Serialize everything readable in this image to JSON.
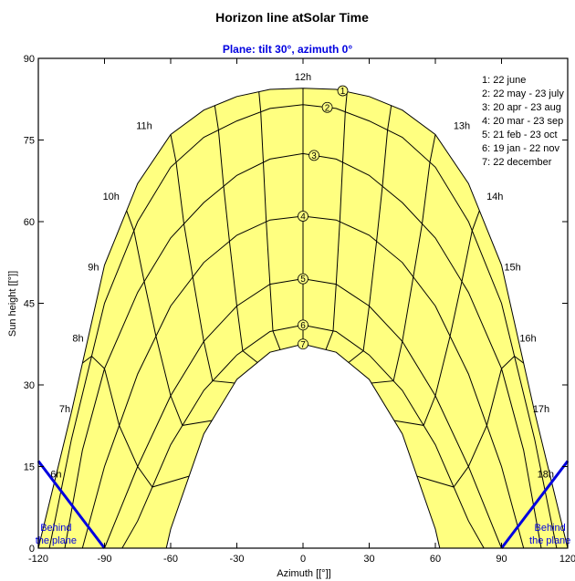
{
  "chart_data": {
    "type": "line",
    "title": "Horizon line atSolar Time",
    "subtitle": "Plane: tilt 30°, azimuth 0°",
    "xlabel": "Azimuth [[°]]",
    "ylabel": "Sun height [[°]]",
    "xlim": [
      -120,
      120
    ],
    "ylim": [
      0,
      90
    ],
    "xticks": [
      "-120",
      "-90",
      "-60",
      "-30",
      "0",
      "30",
      "60",
      "90",
      "120"
    ],
    "yticks": [
      "0",
      "15",
      "30",
      "45",
      "60",
      "75",
      "90"
    ],
    "grid": false,
    "legend_position": "top-right",
    "legend": [
      "1: 22 june",
      "2: 22 may - 23 july",
      "3: 20 apr - 23 aug",
      "4: 20 mar - 23 sep",
      "5: 21 feb - 23 oct",
      "6: 19 jan - 22 nov",
      "7: 22 december"
    ],
    "day_curves": [
      {
        "id": "1",
        "label": "22 june",
        "noon_height": 84.5,
        "x": [
          -120,
          -105,
          -90,
          -75,
          -60,
          -45,
          -30,
          -15,
          0,
          15,
          30,
          45,
          60,
          75,
          90,
          105,
          120
        ],
        "y": [
          0,
          25,
          52,
          67,
          76,
          80.5,
          83,
          84.3,
          84.5,
          84.3,
          83,
          80.5,
          76,
          67,
          52,
          25,
          0
        ]
      },
      {
        "id": "2",
        "label": "22 may - 23 july",
        "noon_height": 81.5,
        "x": [
          -115,
          -105,
          -90,
          -75,
          -60,
          -45,
          -30,
          -15,
          0,
          15,
          30,
          45,
          60,
          75,
          90,
          105,
          115
        ],
        "y": [
          0,
          20,
          45,
          60,
          70,
          75.5,
          78.5,
          80.8,
          81.5,
          80.8,
          78.5,
          75.5,
          70,
          60,
          45,
          20,
          0
        ]
      },
      {
        "id": "3",
        "label": "20 apr - 23 aug",
        "noon_height": 72.5,
        "x": [
          -108,
          -100,
          -90,
          -75,
          -60,
          -45,
          -30,
          -15,
          0,
          15,
          30,
          45,
          60,
          75,
          90,
          100,
          108
        ],
        "y": [
          0,
          18,
          33,
          47,
          57,
          63.5,
          68.5,
          71.5,
          72.5,
          71.5,
          68.5,
          63.5,
          57,
          47,
          33,
          18,
          0
        ]
      },
      {
        "id": "4",
        "label": "20 mar - 23 sep",
        "noon_height": 61,
        "x": [
          -100,
          -90,
          -75,
          -60,
          -45,
          -30,
          -15,
          0,
          15,
          30,
          45,
          60,
          75,
          90,
          100
        ],
        "y": [
          0,
          15,
          32,
          44.5,
          52.5,
          57.5,
          60.3,
          61,
          60.3,
          57.5,
          52.5,
          44.5,
          32,
          15,
          0
        ]
      },
      {
        "id": "5",
        "label": "21 feb - 23 oct",
        "noon_height": 49.5,
        "x": [
          -90,
          -75,
          -60,
          -45,
          -30,
          -15,
          0,
          15,
          30,
          45,
          60,
          75,
          90
        ],
        "y": [
          0,
          15,
          28,
          38,
          44.5,
          48.5,
          49.5,
          48.5,
          44.5,
          38,
          28,
          15,
          0
        ]
      },
      {
        "id": "6",
        "label": "19 jan - 22 nov",
        "noon_height": 41,
        "x": [
          -82,
          -75,
          -60,
          -45,
          -30,
          -15,
          0,
          15,
          30,
          45,
          60,
          75,
          82
        ],
        "y": [
          0,
          5,
          19,
          29,
          35.5,
          39.8,
          41,
          39.8,
          35.5,
          29,
          19,
          5,
          0
        ]
      },
      {
        "id": "7",
        "label": "22 december",
        "noon_height": 37.5,
        "x": [
          -62,
          -60,
          -45,
          -30,
          -15,
          0,
          15,
          30,
          45,
          60,
          62
        ],
        "y": [
          0,
          3.5,
          21,
          31,
          36,
          37.5,
          36,
          31,
          21,
          3.5,
          0
        ]
      }
    ],
    "hour_labels": [
      {
        "label": "6h",
        "x": -112,
        "y": 13
      },
      {
        "label": "7h",
        "x": -108,
        "y": 25
      },
      {
        "label": "8h",
        "x": -102,
        "y": 38
      },
      {
        "label": "9h",
        "x": -95,
        "y": 51
      },
      {
        "label": "10h",
        "x": -87,
        "y": 64
      },
      {
        "label": "11h",
        "x": -72,
        "y": 77
      },
      {
        "label": "12h",
        "x": 0,
        "y": 86
      },
      {
        "label": "13h",
        "x": 72,
        "y": 77
      },
      {
        "label": "14h",
        "x": 87,
        "y": 64
      },
      {
        "label": "15h",
        "x": 95,
        "y": 51
      },
      {
        "label": "16h",
        "x": 102,
        "y": 38
      },
      {
        "label": "17h",
        "x": 108,
        "y": 25
      },
      {
        "label": "18h",
        "x": 110,
        "y": 13
      }
    ],
    "behind_plane": {
      "label": "Behind the plane",
      "left": {
        "x": [
          -120,
          -90
        ],
        "y": [
          16,
          0
        ]
      },
      "right": {
        "x": [
          90,
          120
        ],
        "y": [
          0,
          16
        ]
      },
      "color": "#0000e0"
    },
    "colors": {
      "fill": "#ffff80",
      "line": "#000000",
      "behind": "#0000e0",
      "subtitle": "#0000e0"
    }
  }
}
